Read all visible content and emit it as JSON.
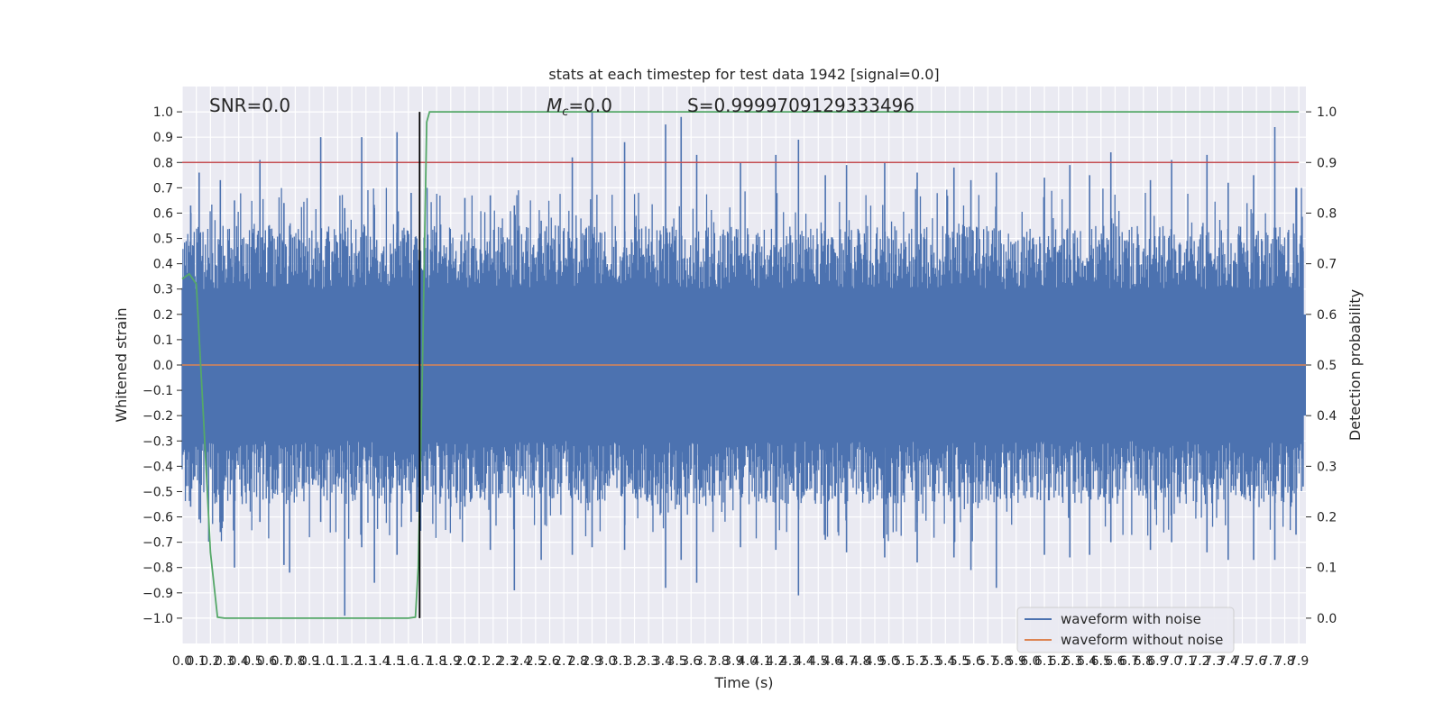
{
  "chart_data": {
    "type": "line",
    "title": "stats at each timestep for test data 1942 [signal=0.0]",
    "xlabel": "Time (s)",
    "ylabel": "Whitened strain",
    "y2label": "Detection probability",
    "xlim": [
      0.0,
      7.95
    ],
    "ylim": [
      -1.1,
      1.1
    ],
    "y2lim": [
      -0.05,
      1.05
    ],
    "xticks": [
      0.0,
      0.1,
      0.2,
      0.3,
      0.4,
      0.5,
      0.6,
      0.7,
      0.8,
      0.9,
      1.0,
      1.1,
      1.2,
      1.3,
      1.4,
      1.5,
      1.6,
      1.7,
      1.8,
      1.9,
      2.0,
      2.1,
      2.2,
      2.3,
      2.4,
      2.5,
      2.6,
      2.7,
      2.8,
      2.9,
      3.0,
      3.1,
      3.2,
      3.3,
      3.4,
      3.5,
      3.6,
      3.7,
      3.8,
      3.9,
      4.0,
      4.1,
      4.2,
      4.3,
      4.4,
      4.5,
      4.6,
      4.7,
      4.8,
      4.9,
      5.0,
      5.1,
      5.2,
      5.3,
      5.4,
      5.5,
      5.6,
      5.7,
      5.8,
      5.9,
      6.0,
      6.1,
      6.2,
      6.3,
      6.4,
      6.5,
      6.6,
      6.7,
      6.8,
      6.9,
      7.0,
      7.1,
      7.2,
      7.3,
      7.4,
      7.5,
      7.6,
      7.7,
      7.8,
      7.9
    ],
    "yticks": [
      -1.0,
      -0.9,
      -0.8,
      -0.7,
      -0.6,
      -0.5,
      -0.4,
      -0.3,
      -0.2,
      -0.1,
      0.0,
      0.1,
      0.2,
      0.3,
      0.4,
      0.5,
      0.6,
      0.7,
      0.8,
      0.9,
      1.0
    ],
    "y2ticks": [
      0.0,
      0.1,
      0.2,
      0.3,
      0.4,
      0.5,
      0.6,
      0.7,
      0.8,
      0.9,
      1.0
    ],
    "annotations": {
      "snr": "SNR=0.0",
      "mc": "=0.0",
      "mc_symbol": "M",
      "mc_subscript": "c",
      "s": "S=0.9999709129333496"
    },
    "series": [
      {
        "name": "waveform with noise",
        "color": "#4c72b0",
        "envelope_peaks": [
          [
            0.06,
            0.63,
            -0.56
          ],
          [
            0.12,
            0.76,
            -0.61
          ],
          [
            0.27,
            0.73,
            -0.66
          ],
          [
            0.37,
            0.65,
            -0.8
          ],
          [
            0.55,
            0.81,
            -0.62
          ],
          [
            0.72,
            0.64,
            -0.79
          ],
          [
            0.76,
            0.55,
            -0.82
          ],
          [
            0.98,
            0.9,
            -0.62
          ],
          [
            1.15,
            0.62,
            -0.99
          ],
          [
            1.27,
            0.9,
            -0.72
          ],
          [
            1.36,
            0.62,
            -0.86
          ],
          [
            1.52,
            0.92,
            -0.75
          ],
          [
            1.62,
            0.68,
            -0.62
          ],
          [
            1.66,
            0.5,
            -0.58
          ],
          [
            1.9,
            0.48,
            -0.56
          ],
          [
            2.0,
            0.66,
            -0.56
          ],
          [
            2.18,
            0.67,
            -0.73
          ],
          [
            2.35,
            0.63,
            -0.89
          ],
          [
            2.54,
            0.57,
            -0.77
          ],
          [
            2.76,
            0.82,
            -0.75
          ],
          [
            2.9,
            1.0,
            -0.72
          ],
          [
            3.13,
            0.88,
            -0.73
          ],
          [
            3.42,
            0.95,
            -0.88
          ],
          [
            3.53,
            0.98,
            -0.77
          ],
          [
            3.64,
            0.83,
            -0.86
          ],
          [
            3.95,
            0.8,
            -0.72
          ],
          [
            4.2,
            0.83,
            -0.73
          ],
          [
            4.36,
            0.89,
            -0.91
          ],
          [
            4.55,
            0.75,
            -0.69
          ],
          [
            4.7,
            0.79,
            -0.74
          ],
          [
            4.97,
            0.8,
            -0.76
          ],
          [
            5.2,
            0.76,
            -0.78
          ],
          [
            5.46,
            0.78,
            -0.76
          ],
          [
            5.58,
            0.73,
            -0.81
          ],
          [
            5.76,
            0.76,
            -0.88
          ],
          [
            6.1,
            0.74,
            -0.75
          ],
          [
            6.28,
            0.79,
            -0.76
          ],
          [
            6.42,
            0.75,
            -0.75
          ],
          [
            6.57,
            0.84,
            -0.7
          ],
          [
            6.85,
            0.73,
            -0.73
          ],
          [
            7.0,
            0.81,
            -0.7
          ],
          [
            7.25,
            0.83,
            -0.74
          ],
          [
            7.4,
            0.72,
            -0.77
          ],
          [
            7.58,
            0.75,
            -0.77
          ],
          [
            7.73,
            0.94,
            -0.77
          ],
          [
            7.88,
            0.7,
            -0.67
          ],
          [
            7.93,
            0.45,
            -0.48
          ]
        ]
      },
      {
        "name": "waveform without noise",
        "color": "#dd8452",
        "x": [
          0.0,
          7.95
        ],
        "y": [
          0.0,
          0.0
        ]
      },
      {
        "color": "#55a868",
        "axis": "right",
        "x": [
          0.0,
          0.05,
          0.1,
          0.15,
          0.2,
          0.25,
          0.3,
          0.5,
          1.0,
          1.5,
          1.6,
          1.65,
          1.67,
          1.7,
          1.73,
          1.75,
          1.8,
          2.0,
          3.0,
          4.0,
          5.0,
          6.0,
          7.0,
          7.9
        ],
        "y": [
          0.67,
          0.68,
          0.66,
          0.4,
          0.13,
          0.002,
          0.0,
          0.0,
          0.0,
          0.0,
          0.0,
          0.002,
          0.1,
          0.5,
          0.98,
          1.0,
          1.0,
          1.0,
          1.0,
          1.0,
          1.0,
          1.0,
          1.0,
          1.0
        ]
      }
    ],
    "hlines": [
      {
        "y2": 0.9,
        "color": "#c44e52"
      }
    ],
    "vlines": [
      {
        "x": 1.68,
        "y2_range": [
          0.0,
          1.0
        ],
        "color": "#000000"
      }
    ],
    "grid": true,
    "legend_position": "lower-right",
    "background": "#eaeaf2"
  }
}
